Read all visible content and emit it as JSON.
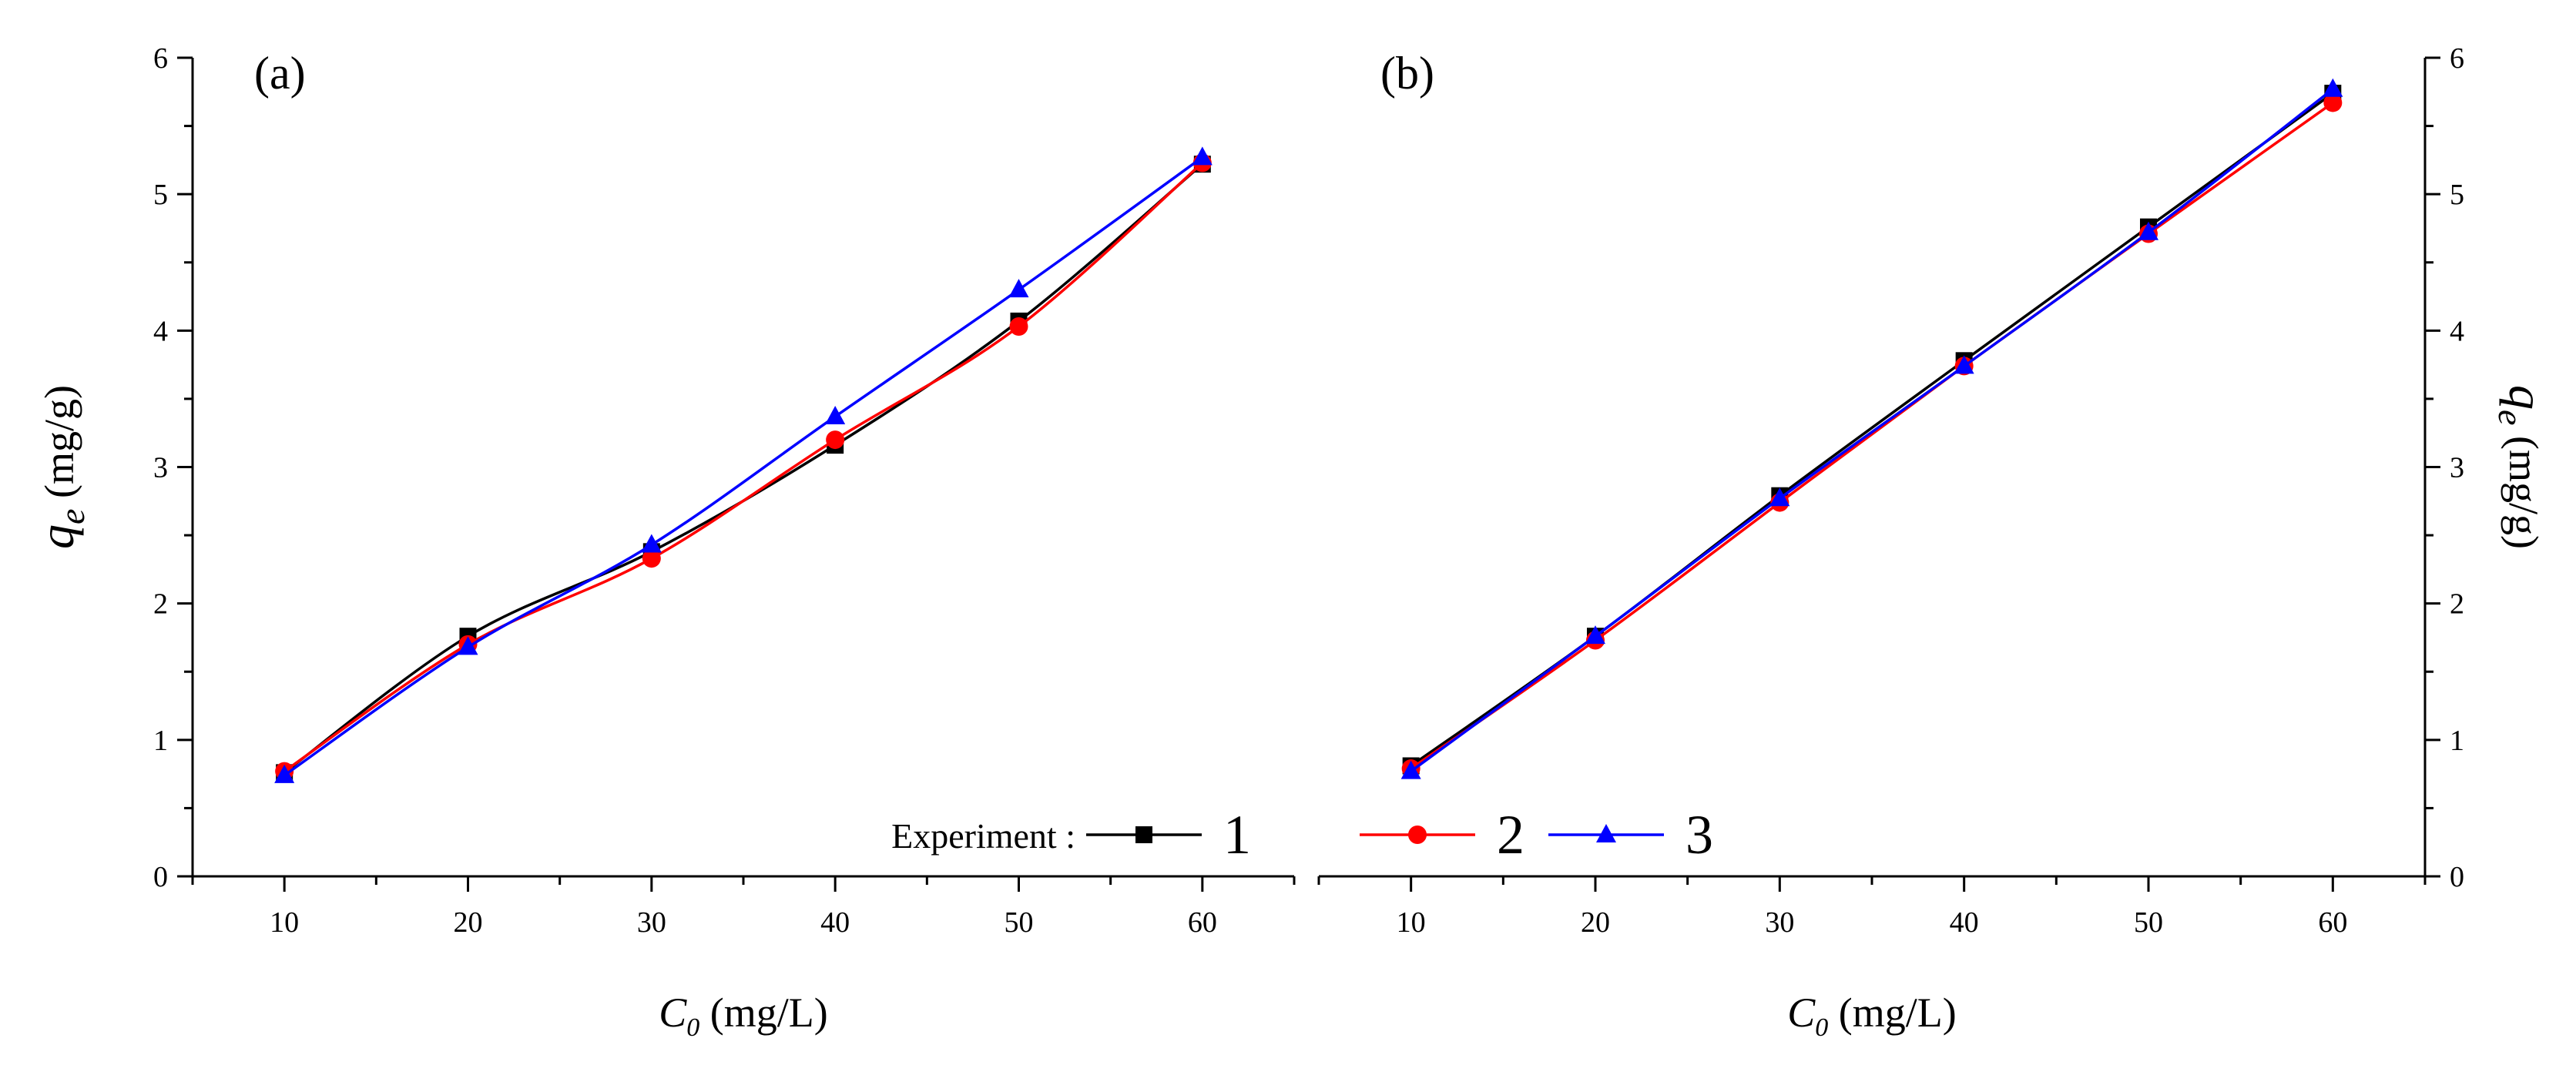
{
  "legend": {
    "prefix": "Experiment :",
    "entries": [
      {
        "label": "1",
        "color": "#000000",
        "marker": "square"
      },
      {
        "label": "2",
        "color": "#ff0000",
        "marker": "circle"
      },
      {
        "label": "3",
        "color": "#0000ff",
        "marker": "triangle"
      }
    ]
  },
  "chart_data": [
    {
      "type": "line",
      "panel_label": "(a)",
      "title": "",
      "xlabel_main": "C",
      "xlabel_sub": "0",
      "xlabel_units": " (mg/L)",
      "ylabel_main": "q",
      "ylabel_sub": "e",
      "ylabel_units": " (mg/g)",
      "yaxis_side": "left",
      "xlim": [
        5,
        65
      ],
      "ylim": [
        0,
        6
      ],
      "xticks": [
        10,
        20,
        30,
        40,
        50,
        60
      ],
      "yticks": [
        0,
        1,
        2,
        3,
        4,
        5,
        6
      ],
      "x": [
        10,
        20,
        30,
        40,
        50,
        60
      ],
      "series": [
        {
          "name": "1",
          "color": "#000000",
          "marker": "square",
          "values": [
            0.76,
            1.76,
            2.38,
            3.16,
            4.07,
            5.22
          ]
        },
        {
          "name": "2",
          "color": "#ff0000",
          "marker": "circle",
          "values": [
            0.77,
            1.7,
            2.33,
            3.2,
            4.03,
            5.23
          ]
        },
        {
          "name": "3",
          "color": "#0000ff",
          "marker": "triangle",
          "values": [
            0.74,
            1.68,
            2.43,
            3.37,
            4.3,
            5.27
          ]
        }
      ]
    },
    {
      "type": "line",
      "panel_label": "(b)",
      "title": "",
      "xlabel_main": "C",
      "xlabel_sub": "0",
      "xlabel_units": " (mg/L)",
      "ylabel_main": "q",
      "ylabel_sub": "e",
      "ylabel_units": " (mg/g)",
      "yaxis_side": "right",
      "xlim": [
        5,
        65
      ],
      "ylim": [
        0,
        6
      ],
      "xticks": [
        10,
        20,
        30,
        40,
        50,
        60
      ],
      "yticks": [
        0,
        1,
        2,
        3,
        4,
        5,
        6
      ],
      "x": [
        10,
        20,
        30,
        40,
        50,
        60
      ],
      "series": [
        {
          "name": "1",
          "color": "#000000",
          "marker": "square",
          "values": [
            0.81,
            1.76,
            2.79,
            3.78,
            4.76,
            5.74
          ]
        },
        {
          "name": "2",
          "color": "#ff0000",
          "marker": "circle",
          "values": [
            0.79,
            1.73,
            2.74,
            3.74,
            4.71,
            5.67
          ]
        },
        {
          "name": "3",
          "color": "#0000ff",
          "marker": "triangle",
          "values": [
            0.77,
            1.76,
            2.77,
            3.74,
            4.72,
            5.77
          ]
        }
      ]
    }
  ]
}
